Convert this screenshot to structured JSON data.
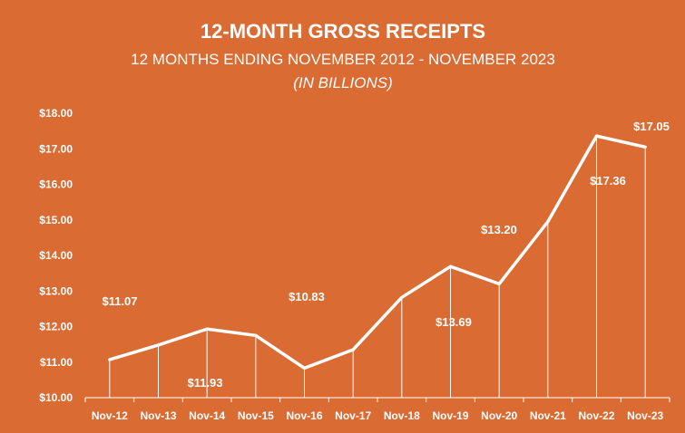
{
  "chart_data": {
    "type": "line",
    "title": "12-MONTH GROSS RECEIPTS",
    "subtitle": "12 MONTHS ENDING NOVEMBER 2012 - NOVEMBER 2023",
    "unit_note": "(IN BILLIONS)",
    "categories": [
      "Nov-12",
      "Nov-13",
      "Nov-14",
      "Nov-15",
      "Nov-16",
      "Nov-17",
      "Nov-18",
      "Nov-19",
      "Nov-20",
      "Nov-21",
      "Nov-22",
      "Nov-23"
    ],
    "values": [
      11.07,
      11.48,
      11.93,
      11.75,
      10.83,
      11.35,
      12.82,
      13.69,
      13.2,
      14.95,
      17.36,
      17.05
    ],
    "ylim": [
      10,
      18
    ],
    "yticks": [
      "$10.00",
      "$11.00",
      "$12.00",
      "$13.00",
      "$14.00",
      "$15.00",
      "$16.00",
      "$17.00",
      "$18.00"
    ],
    "data_labels": [
      {
        "index": 0,
        "text": "$11.07"
      },
      {
        "index": 2,
        "text": "$11.93"
      },
      {
        "index": 4,
        "text": "$10.83"
      },
      {
        "index": 7,
        "text": "$13.69"
      },
      {
        "index": 8,
        "text": "$13.20"
      },
      {
        "index": 10,
        "text": "$17.36"
      },
      {
        "index": 11,
        "text": "$17.05"
      }
    ],
    "colors": {
      "background": "#D96B33",
      "line": "#ffffff",
      "text": "#ffffff"
    },
    "grid": false,
    "drop_lines": true
  }
}
